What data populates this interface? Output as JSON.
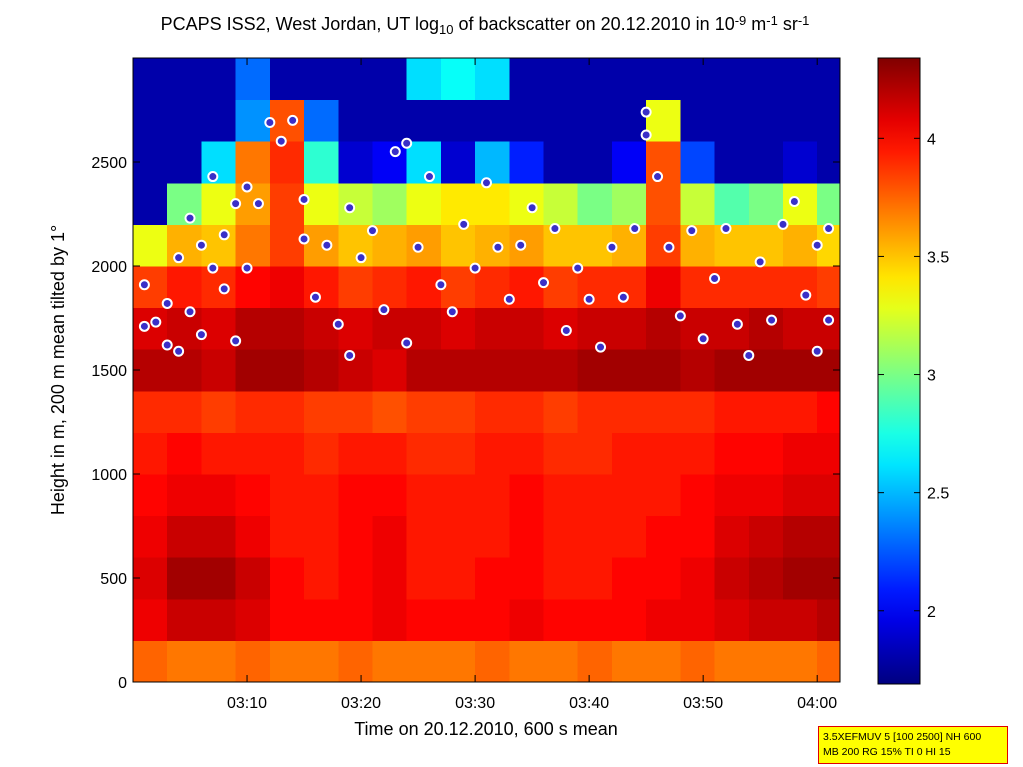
{
  "chart_data": {
    "type": "heatmap",
    "title": [
      "PCAPS ISS2, West Jordan, UT log",
      "10",
      " of backscatter on 20.12.2010 in 10",
      "-9",
      " m",
      "-1",
      " sr",
      "-1"
    ],
    "xlabel": "Time on 20.12.2010, 600 s mean",
    "ylabel": "Height in m, 200 m mean tilted by 1°",
    "colormap": "jet",
    "xlim": [
      "03:00",
      "04:02"
    ],
    "xticks": [
      "03:10",
      "03:20",
      "03:30",
      "03:40",
      "03:50",
      "04:00"
    ],
    "ylim": [
      0,
      3000
    ],
    "yticks": [
      0,
      500,
      1000,
      1500,
      2000,
      2500
    ],
    "clim": [
      1.69,
      4.34
    ],
    "cticks": [
      2,
      2.5,
      3,
      3.5,
      4
    ],
    "xbins": [
      "03:00",
      "03:03",
      "03:06",
      "03:09",
      "03:12",
      "03:15",
      "03:18",
      "03:21",
      "03:24",
      "03:27",
      "03:30",
      "03:33",
      "03:36",
      "03:39",
      "03:42",
      "03:45",
      "03:48",
      "03:51",
      "03:54",
      "03:57",
      "04:00",
      "04:02"
    ],
    "ybins": [
      0,
      200,
      400,
      600,
      800,
      1000,
      1200,
      1400,
      1600,
      1800,
      2000,
      2200,
      2400,
      2600,
      2800,
      3000
    ],
    "z": [
      [
        3.75,
        3.7,
        3.7,
        3.75,
        3.7,
        3.7,
        3.75,
        3.7,
        3.7,
        3.7,
        3.75,
        3.7,
        3.7,
        3.75,
        3.7,
        3.7,
        3.75,
        3.7,
        3.7,
        3.7,
        3.75
      ],
      [
        4.05,
        4.15,
        4.15,
        4.1,
        4.0,
        4.0,
        4.0,
        4.05,
        4.0,
        4.0,
        4.0,
        4.05,
        4.0,
        4.0,
        4.0,
        4.05,
        4.05,
        4.1,
        4.15,
        4.15,
        4.2
      ],
      [
        4.1,
        4.25,
        4.25,
        4.15,
        4.0,
        3.95,
        4.0,
        4.05,
        3.95,
        3.95,
        4.0,
        4.0,
        3.95,
        3.95,
        4.0,
        4.0,
        4.05,
        4.15,
        4.2,
        4.25,
        4.25
      ],
      [
        4.05,
        4.15,
        4.15,
        4.05,
        3.95,
        3.95,
        4.0,
        4.05,
        3.95,
        3.95,
        3.95,
        4.0,
        3.95,
        3.95,
        3.95,
        4.0,
        4.0,
        4.1,
        4.15,
        4.2,
        4.2
      ],
      [
        4.0,
        4.05,
        4.05,
        4.0,
        3.95,
        3.95,
        4.0,
        4.0,
        3.95,
        3.95,
        3.95,
        4.0,
        3.95,
        3.95,
        3.95,
        3.95,
        4.0,
        4.05,
        4.05,
        4.1,
        4.1
      ],
      [
        3.95,
        4.0,
        3.95,
        3.95,
        3.95,
        3.9,
        3.95,
        3.95,
        3.9,
        3.9,
        3.95,
        3.95,
        3.9,
        3.9,
        3.95,
        3.95,
        3.95,
        4.0,
        4.0,
        4.05,
        4.05
      ],
      [
        3.9,
        3.9,
        3.85,
        3.9,
        3.9,
        3.85,
        3.85,
        3.8,
        3.85,
        3.85,
        3.9,
        3.9,
        3.85,
        3.9,
        3.9,
        3.9,
        3.9,
        3.95,
        3.95,
        3.95,
        4.0
      ],
      [
        4.2,
        4.2,
        4.15,
        4.25,
        4.25,
        4.2,
        4.15,
        4.1,
        4.2,
        4.2,
        4.2,
        4.2,
        4.2,
        4.25,
        4.25,
        4.25,
        4.2,
        4.25,
        4.25,
        4.25,
        4.25
      ],
      [
        4.1,
        4.15,
        4.1,
        4.2,
        4.2,
        4.15,
        4.1,
        4.15,
        4.15,
        4.1,
        4.15,
        4.15,
        4.1,
        4.15,
        4.15,
        4.2,
        4.15,
        4.15,
        4.2,
        4.15,
        4.15
      ],
      [
        3.85,
        3.95,
        3.9,
        4.0,
        4.05,
        3.95,
        3.85,
        3.9,
        3.95,
        3.85,
        3.9,
        3.95,
        3.85,
        3.9,
        3.9,
        4.05,
        3.9,
        3.9,
        3.9,
        3.9,
        3.85
      ],
      [
        3.3,
        3.55,
        3.5,
        3.7,
        3.85,
        3.6,
        3.5,
        3.55,
        3.6,
        3.5,
        3.55,
        3.6,
        3.5,
        3.5,
        3.55,
        3.85,
        3.55,
        3.5,
        3.5,
        3.55,
        3.45
      ],
      [
        1.8,
        3.0,
        3.3,
        3.6,
        3.85,
        3.3,
        3.2,
        3.1,
        3.3,
        3.4,
        3.4,
        3.3,
        3.2,
        3.0,
        3.1,
        3.8,
        3.2,
        2.9,
        3.0,
        3.3,
        3.0
      ],
      [
        1.8,
        1.8,
        2.6,
        3.7,
        3.9,
        2.8,
        1.9,
        2.0,
        2.6,
        1.9,
        2.5,
        2.1,
        1.8,
        1.8,
        2.0,
        3.8,
        2.2,
        1.8,
        1.8,
        1.9,
        1.8
      ],
      [
        1.8,
        1.8,
        1.8,
        2.4,
        3.8,
        2.3,
        1.8,
        1.8,
        1.8,
        1.8,
        1.8,
        1.8,
        1.8,
        1.8,
        1.8,
        3.3,
        1.8,
        1.8,
        1.8,
        1.8,
        1.8
      ],
      [
        1.8,
        1.8,
        1.8,
        2.3,
        1.8,
        1.8,
        1.8,
        1.8,
        2.6,
        2.7,
        2.6,
        1.8,
        1.8,
        1.8,
        1.8,
        1.8,
        1.8,
        1.8,
        1.8,
        1.8,
        1.8
      ]
    ],
    "points": {
      "color": "#3a2fc8",
      "x": [
        "03:01",
        "03:01",
        "03:02",
        "03:03",
        "03:03",
        "03:04",
        "03:04",
        "03:05",
        "03:05",
        "03:06",
        "03:06",
        "03:07",
        "03:07",
        "03:08",
        "03:08",
        "03:09",
        "03:09",
        "03:10",
        "03:10",
        "03:11",
        "03:12",
        "03:13",
        "03:14",
        "03:15",
        "03:15",
        "03:16",
        "03:17",
        "03:18",
        "03:19",
        "03:19",
        "03:20",
        "03:21",
        "03:22",
        "03:23",
        "03:24",
        "03:24",
        "03:25",
        "03:26",
        "03:27",
        "03:28",
        "03:29",
        "03:30",
        "03:31",
        "03:32",
        "03:33",
        "03:34",
        "03:35",
        "03:36",
        "03:37",
        "03:38",
        "03:39",
        "03:40",
        "03:41",
        "03:42",
        "03:43",
        "03:44",
        "03:45",
        "03:45",
        "03:46",
        "03:47",
        "03:48",
        "03:49",
        "03:50",
        "03:51",
        "03:52",
        "03:53",
        "03:54",
        "03:55",
        "03:56",
        "03:57",
        "03:58",
        "03:59",
        "04:00",
        "04:00",
        "04:01",
        "04:01"
      ],
      "y": [
        1910,
        1710,
        1730,
        1620,
        1820,
        2040,
        1590,
        1780,
        2230,
        2100,
        1670,
        2430,
        1990,
        2150,
        1890,
        2300,
        1640,
        2380,
        1990,
        2300,
        2690,
        2600,
        2700,
        2320,
        2130,
        1850,
        2100,
        1720,
        2280,
        1570,
        2040,
        2170,
        1790,
        2550,
        2590,
        1630,
        2090,
        2430,
        1910,
        1780,
        2200,
        1990,
        2400,
        2090,
        1840,
        2100,
        2280,
        1920,
        2180,
        1690,
        1990,
        1840,
        1610,
        2090,
        1850,
        2180,
        2630,
        2740,
        2430,
        2090,
        1760,
        2170,
        1650,
        1940,
        2180,
        1720,
        1570,
        2020,
        1740,
        2200,
        2310,
        1860,
        1590,
        2100,
        2180,
        1740
      ]
    },
    "annotation": [
      "3.5XEFMUV 5 [100 2500] NH 600",
      "MB 200 RG 15% TI 0 HI 15"
    ]
  }
}
